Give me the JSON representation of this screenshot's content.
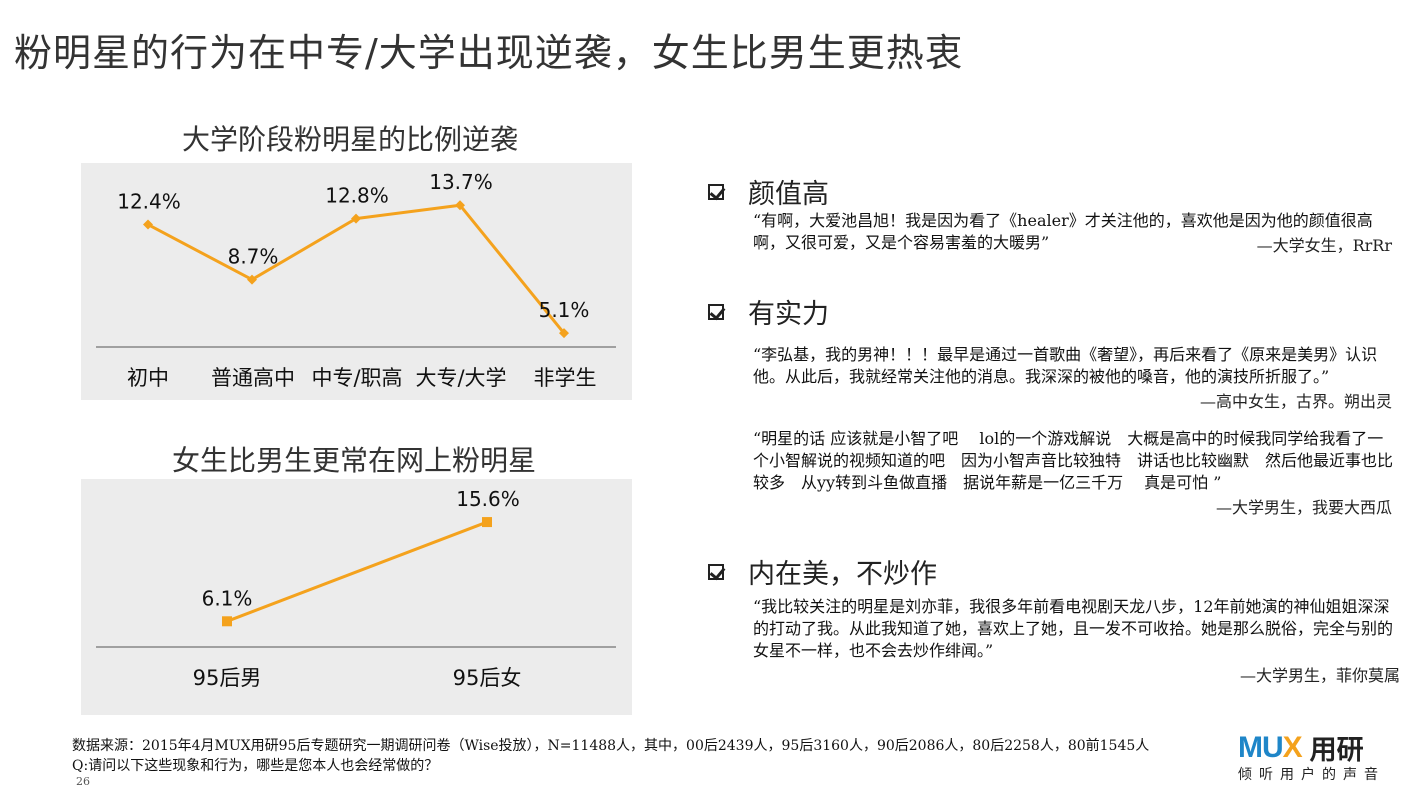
{
  "title": "粉明星的行为在中专/大学出现逆袭，女生比男生更热衷",
  "chart_data": [
    {
      "type": "line",
      "title": "大学阶段粉明星的比例逆袭",
      "categories": [
        "初中",
        "普通高中",
        "中专/职高",
        "大专/大学",
        "非学生"
      ],
      "values": [
        12.4,
        8.7,
        12.8,
        13.7,
        5.1
      ],
      "data_labels": [
        "12.4%",
        "8.7%",
        "12.8%",
        "13.7%",
        "5.1%"
      ],
      "ylim": [
        0,
        16
      ],
      "color": "#f4a21d",
      "marker": "diamond",
      "grid": false
    },
    {
      "type": "line",
      "title": "女生比男生更常在网上粉明星",
      "categories": [
        "95后男",
        "95后女"
      ],
      "values": [
        6.1,
        15.6
      ],
      "data_labels": [
        "6.1%",
        "15.6%"
      ],
      "ylim": [
        0,
        18
      ],
      "color": "#f4a21d",
      "marker": "square",
      "grid": false
    }
  ],
  "sections": [
    {
      "heading": "颜值高",
      "quotes": [
        {
          "text": "“有啊，大爱池昌旭！我是因为看了《healer》才关注他的，喜欢他是因为他的颜值很高啊，又很可爱，又是个容易害羞的大暖男”",
          "attribution": "—大学女生，RrRr"
        }
      ]
    },
    {
      "heading": "有实力",
      "quotes": [
        {
          "text": "“李弘基，我的男神！！！最早是通过一首歌曲《奢望》，再后来看了《原来是美男》认识他。从此后，我就经常关注他的消息。我深深的被他的嗓音，他的演技所折服了。”",
          "attribution": "—高中女生，古界。朔出灵"
        },
        {
          "text": "“明星的话 应该就是小智了吧　 lol的一个游戏解说　大概是高中的时候我同学给我看了一个小智解说的视频知道的吧　因为小智声音比较独特　讲话也比较幽默　然后他最近事也比较多　从yy转到斗鱼做直播　据说年薪是一亿三千万　 真是可怕 ”",
          "attribution": "—大学男生，我要大西瓜"
        }
      ]
    },
    {
      "heading": "内在美，不炒作",
      "quotes": [
        {
          "text": "“我比较关注的明星是刘亦菲，我很多年前看电视剧天龙八步，12年前她演的神仙姐姐深深的打动了我。从此我知道了她，喜欢上了她，且一发不可收拾。她是那么脱俗，完全与别的女星不一样，也不会去炒作绯闻。”",
          "attribution": "—大学男生，菲你莫属"
        }
      ]
    }
  ],
  "footer": {
    "source": "数据来源：2015年4月MUX用研95后专题研究一期调研问卷（Wise投放），N=11488人，其中，00后2439人，95后3160人，90后2086人，80后2258人，80前1545人",
    "question": "Q:请问以下这些现象和行为，哪些是您本人也会经常做的？",
    "page_number": "26"
  },
  "logo": {
    "mux_prefix": "MU",
    "mux_x": "X",
    "cn": "用研",
    "tagline": "倾听用户的声音"
  }
}
